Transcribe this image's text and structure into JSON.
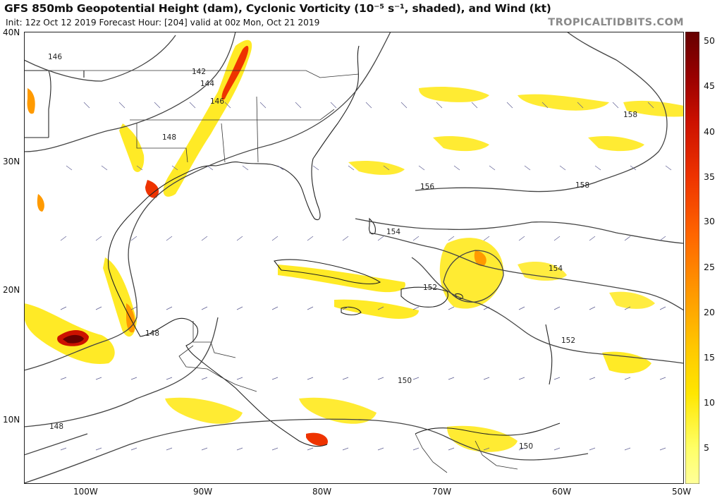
{
  "header": {
    "title": "GFS 850mb Geopotential Height (dam), Cyclonic Vorticity (10⁻⁵ s⁻¹, shaded), and Wind (kt)",
    "subtitle": "Init: 12z Oct 12 2019   Forecast Hour: [204]   valid at 00z Mon, Oct 21 2019",
    "brand": "TROPICALTIDBITS.COM"
  },
  "axes": {
    "lat_labels": [
      "40N",
      "30N",
      "20N",
      "10N"
    ],
    "lon_labels": [
      "100W",
      "90W",
      "80W",
      "70W",
      "60W",
      "50W"
    ]
  },
  "contour_labels": [
    "146",
    "142",
    "144",
    "146",
    "148",
    "156",
    "158",
    "158",
    "154",
    "154",
    "152",
    "152",
    "148",
    "150",
    "148",
    "150"
  ],
  "colorbar": {
    "labels": [
      "50",
      "45",
      "40",
      "35",
      "30",
      "25",
      "20",
      "15",
      "10",
      "5"
    ],
    "colors": [
      "#ffff66",
      "#ffe600",
      "#ffc800",
      "#ff9a00",
      "#ff6600",
      "#ee3300",
      "#cc1100",
      "#990000",
      "#660000"
    ]
  }
}
